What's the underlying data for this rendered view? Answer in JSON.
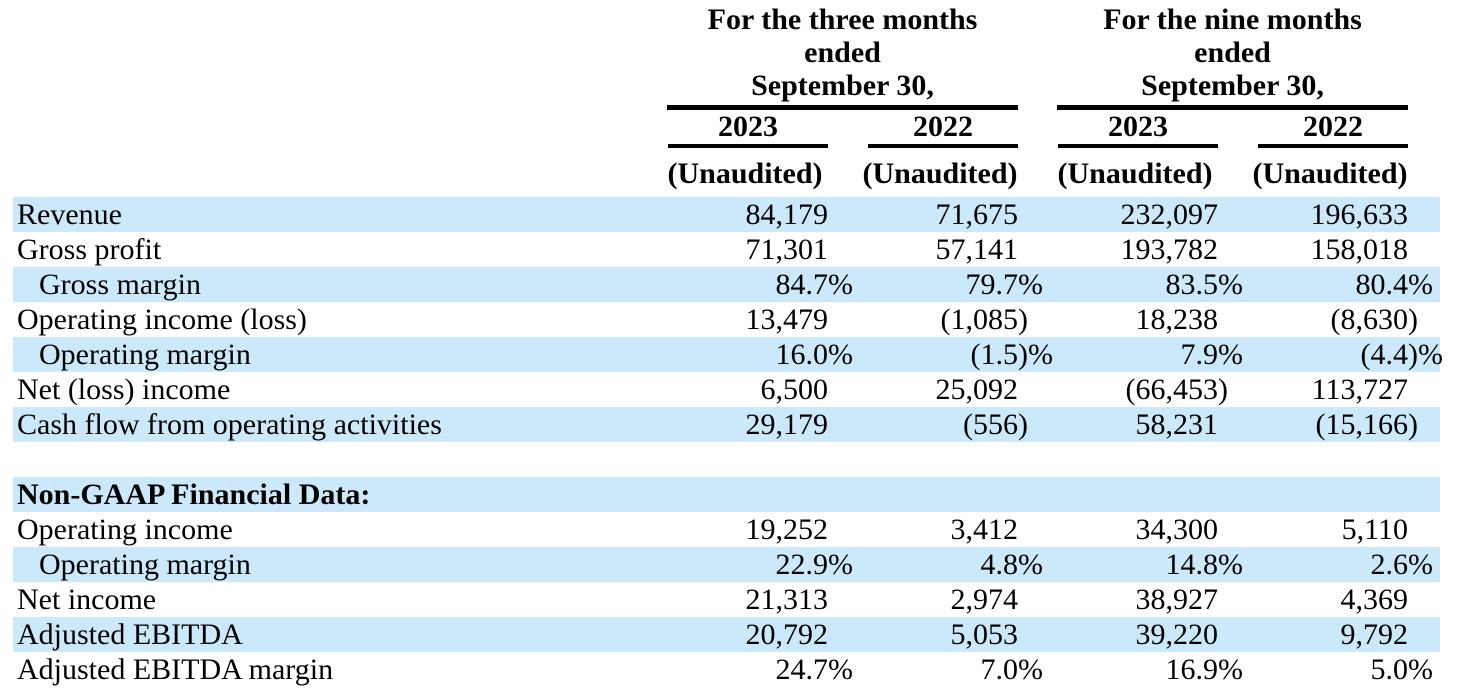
{
  "colors": {
    "row_highlight": "#cbe9fb",
    "text": "#000000",
    "rule": "#000000",
    "background": "#ffffff"
  },
  "table": {
    "groups": [
      {
        "title_lines": [
          "For the three months",
          "ended",
          "September 30,"
        ],
        "years": [
          "2023",
          "2022"
        ],
        "subnote": "(Unaudited)"
      },
      {
        "title_lines": [
          "For the nine months",
          "ended",
          "September 30,"
        ],
        "years": [
          "2023",
          "2022"
        ],
        "subnote": "(Unaudited)"
      }
    ],
    "rows": [
      {
        "label": "Revenue",
        "indent": false,
        "bold": false,
        "highlight": true,
        "values": [
          "84,179",
          "71,675",
          "232,097",
          "196,633"
        ]
      },
      {
        "label": "Gross profit",
        "indent": false,
        "bold": false,
        "highlight": false,
        "values": [
          "71,301",
          "57,141",
          "193,782",
          "158,018"
        ]
      },
      {
        "label": "Gross margin",
        "indent": true,
        "bold": false,
        "highlight": true,
        "values": [
          "84.7%",
          "79.7%",
          "83.5%",
          "80.4%"
        ]
      },
      {
        "label": "Operating income (loss)",
        "indent": false,
        "bold": false,
        "highlight": false,
        "values": [
          "13,479",
          "(1,085)",
          "18,238",
          "(8,630)"
        ]
      },
      {
        "label": "Operating margin",
        "indent": true,
        "bold": false,
        "highlight": true,
        "values": [
          "16.0%",
          "(1.5)%",
          "7.9%",
          "(4.4)%"
        ]
      },
      {
        "label": "Net (loss) income",
        "indent": false,
        "bold": false,
        "highlight": false,
        "values": [
          "6,500",
          "25,092",
          "(66,453)",
          "113,727"
        ]
      },
      {
        "label": "Cash flow from operating activities",
        "indent": false,
        "bold": false,
        "highlight": true,
        "values": [
          "29,179",
          "(556)",
          "58,231",
          "(15,166)"
        ]
      },
      {
        "spacer": true
      },
      {
        "label": "Non-GAAP Financial Data:",
        "indent": false,
        "bold": true,
        "highlight": true,
        "values": [
          "",
          "",
          "",
          ""
        ]
      },
      {
        "label": "Operating income",
        "indent": false,
        "bold": false,
        "highlight": false,
        "values": [
          "19,252",
          "3,412",
          "34,300",
          "5,110"
        ]
      },
      {
        "label": "Operating margin",
        "indent": true,
        "bold": false,
        "highlight": true,
        "values": [
          "22.9%",
          "4.8%",
          "14.8%",
          "2.6%"
        ]
      },
      {
        "label": "Net income",
        "indent": false,
        "bold": false,
        "highlight": false,
        "values": [
          "21,313",
          "2,974",
          "38,927",
          "4,369"
        ]
      },
      {
        "label": "Adjusted EBITDA",
        "indent": false,
        "bold": false,
        "highlight": true,
        "values": [
          "20,792",
          "5,053",
          "39,220",
          "9,792"
        ]
      },
      {
        "label": "Adjusted EBITDA margin",
        "indent": false,
        "bold": false,
        "highlight": false,
        "values": [
          "24.7%",
          "7.0%",
          "16.9%",
          "5.0%"
        ]
      }
    ]
  }
}
